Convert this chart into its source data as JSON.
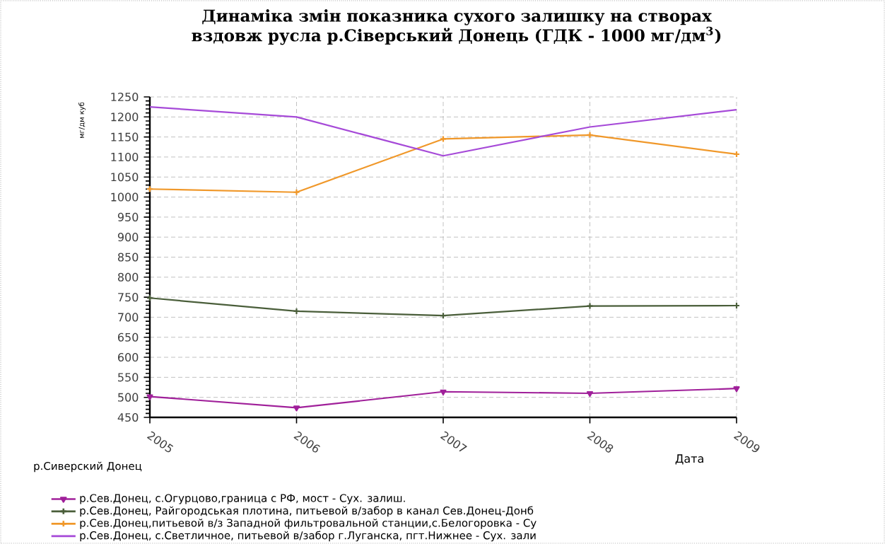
{
  "chart_data": {
    "type": "line",
    "title": "Динаміка змін показника сухого залишку на створах вздовж русла р.Сіверський Донець (ГДК - 1000 мг/дм$^{3}$)",
    "xlabel": "Дата",
    "ylabel": "мг/дм куб",
    "legend_title": "р.Сиверский Донец",
    "x": [
      2005,
      2006,
      2007,
      2008,
      2009
    ],
    "xlim": [
      2005,
      2009
    ],
    "xticks": [
      2005,
      2006,
      2007,
      2008,
      2009
    ],
    "ylim": [
      450,
      1250
    ],
    "yticks": [
      450,
      500,
      550,
      600,
      650,
      700,
      750,
      800,
      850,
      900,
      950,
      1000,
      1050,
      1100,
      1150,
      1200,
      1250
    ],
    "grid": true,
    "legend": "bottom",
    "series": [
      {
        "name": "р.Сев.Донец, с.Огурцово,граница с РФ, мост - Сух. залиш.",
        "color": "#a0209a",
        "marker": "triangle",
        "values": [
          502,
          474,
          514,
          510,
          522
        ]
      },
      {
        "name": "р.Сев.Донец, Райгородськая плотина, питьевой в/забор в канал Сев.Донец-Донб",
        "color": "#4a5e3a",
        "marker": "cross",
        "values": [
          748,
          715,
          704,
          728,
          729
        ]
      },
      {
        "name": "р.Сев.Донец,питьевой в/з Западной фильтровальной станции,с.Белогоровка - Су",
        "color": "#f0982a",
        "marker": "cross",
        "values": [
          1020,
          1012,
          1145,
          1155,
          1107
        ]
      },
      {
        "name": "р.Сев.Донец, с.Светличное, питьевой в/забор г.Луганска, пгт.Нижнее - Сух. зали",
        "color": "#a64ad8",
        "marker": "none",
        "values": [
          1225,
          1200,
          1103,
          1175,
          1218
        ]
      }
    ]
  }
}
